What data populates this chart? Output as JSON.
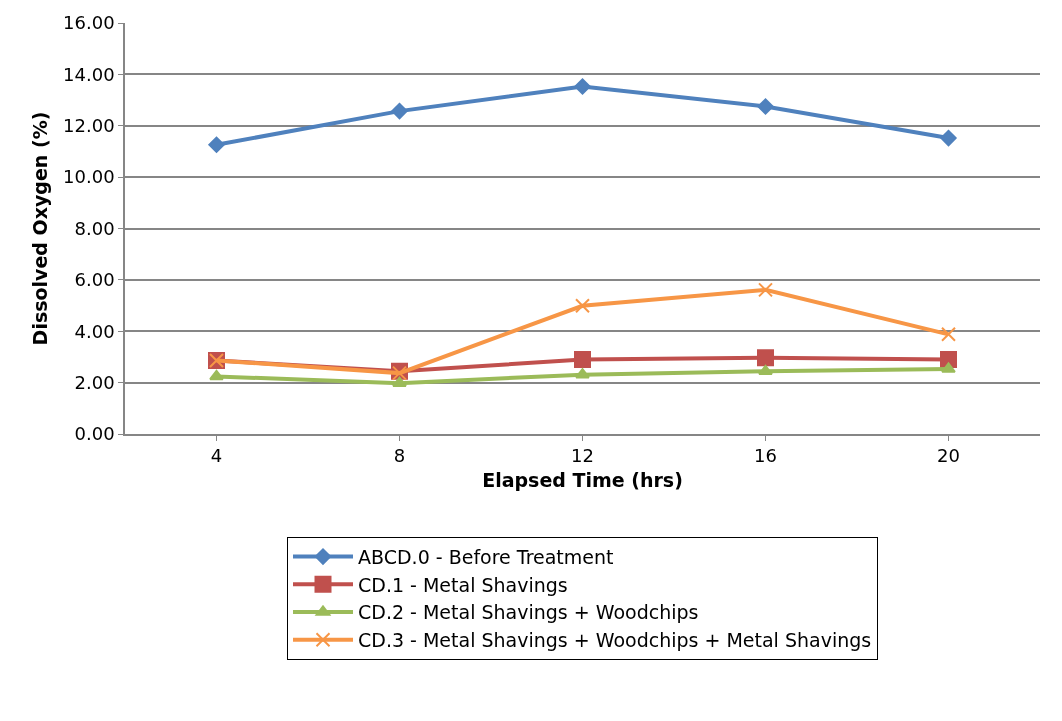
{
  "chart_data": {
    "type": "line",
    "xlabel": "Elapsed Time (hrs)",
    "ylabel": "Dissolved Oxygen (%)",
    "categories": [
      "4",
      "8",
      "12",
      "16",
      "20"
    ],
    "series": [
      {
        "name": "ABCD.0 - Before Treatment",
        "color": "#4f81bd",
        "marker": "diamond",
        "values": [
          11.26,
          12.57,
          13.53,
          12.75,
          11.52
        ]
      },
      {
        "name": "CD.1 - Metal Shavings",
        "color": "#c0504d",
        "marker": "square",
        "values": [
          2.86,
          2.44,
          2.9,
          2.97,
          2.9
        ]
      },
      {
        "name": "CD.2 - Metal Shavings + Woodchips",
        "color": "#9bbb59",
        "marker": "triangle",
        "values": [
          2.24,
          1.98,
          2.31,
          2.44,
          2.53
        ]
      },
      {
        "name": "CD.3 - Metal Shavings + Woodchips + Metal Shavings",
        "color": "#f79646",
        "marker": "cross",
        "values": [
          2.86,
          2.37,
          4.99,
          5.61,
          3.88
        ]
      }
    ],
    "ylim": [
      0,
      16
    ],
    "yticks": [
      {
        "value": 0,
        "label": "0.00"
      },
      {
        "value": 2,
        "label": "2.00"
      },
      {
        "value": 4,
        "label": "4.00"
      },
      {
        "value": 6,
        "label": "6.00"
      },
      {
        "value": 8,
        "label": "8.00"
      },
      {
        "value": 10,
        "label": "10.00"
      },
      {
        "value": 12,
        "label": "12.00"
      },
      {
        "value": 14,
        "label": "14.00"
      },
      {
        "value": 16,
        "label": "16.00"
      }
    ],
    "grid": "y",
    "legend": "bottom",
    "line_style": "solid"
  }
}
